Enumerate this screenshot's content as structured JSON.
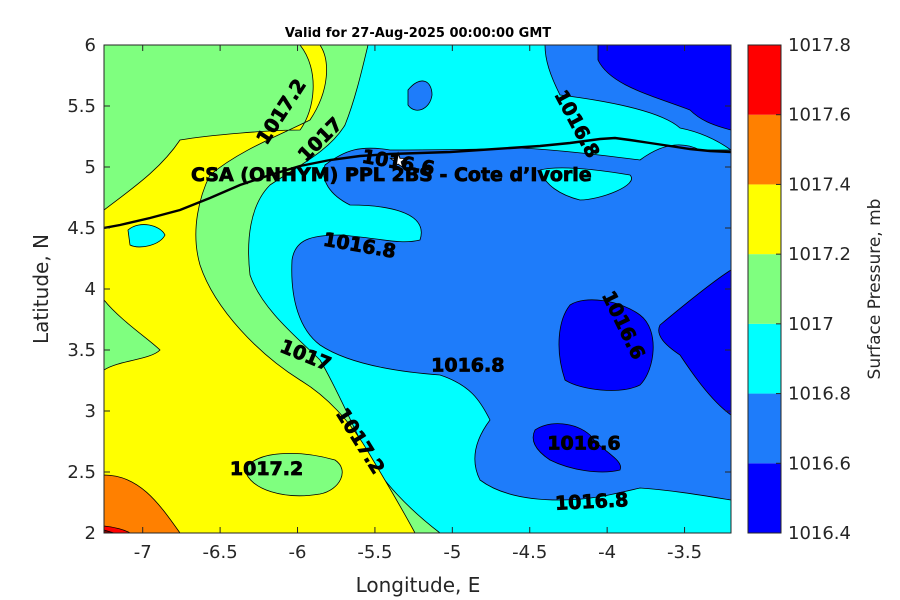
{
  "chart_data": {
    "type": "heatmap",
    "title": "Valid for 27-Aug-2025 00:00:00 GMT",
    "xlabel": "Longitude, E",
    "ylabel": "Latitude, N",
    "xlim": [
      -7.25,
      -3.2
    ],
    "ylim": [
      2,
      6
    ],
    "x_ticks": [
      -7,
      -6.5,
      -6,
      -5.5,
      -5,
      -4.5,
      -4,
      -3.5
    ],
    "x_tick_labels": [
      "-7",
      "-6.5",
      "-6",
      "-5.5",
      "-5",
      "-4.5",
      "-4",
      "-3.5"
    ],
    "y_ticks": [
      2,
      2.5,
      3,
      3.5,
      4,
      4.5,
      5,
      5.5,
      6
    ],
    "y_tick_labels": [
      "2",
      "2.5",
      "3",
      "3.5",
      "4",
      "4.5",
      "5",
      "5.5",
      "6"
    ],
    "colorbar": {
      "label": "Surface Pressure, mb",
      "levels": [
        1016.4,
        1016.6,
        1016.8,
        1017,
        1017.2,
        1017.4,
        1017.6,
        1017.8
      ],
      "tick_labels": [
        "1016.4",
        "1016.6",
        "1016.8",
        "1017",
        "1017.2",
        "1017.4",
        "1017.6",
        "1017.8"
      ],
      "colors": [
        "#0000ff",
        "#1e7cfa",
        "#00ffff",
        "#7fff7f",
        "#ffff00",
        "#ff8000",
        "#ff0000",
        "#800000"
      ]
    },
    "contour_labels": [
      {
        "text": "1017.2",
        "lon": -6.1,
        "lat": 5.45,
        "angle": -57
      },
      {
        "text": "1017",
        "lon": -5.85,
        "lat": 5.22,
        "angle": -45
      },
      {
        "text": "1016.8",
        "lon": -4.2,
        "lat": 5.35,
        "angle": 62
      },
      {
        "text": "1016.6",
        "lon": -5.35,
        "lat": 5.03,
        "angle": 10
      },
      {
        "text": "1016.8",
        "lon": -5.6,
        "lat": 4.35,
        "angle": 10
      },
      {
        "text": "1016.6",
        "lon": -3.9,
        "lat": 3.7,
        "angle": 64
      },
      {
        "text": "1017",
        "lon": -5.95,
        "lat": 3.45,
        "angle": 22
      },
      {
        "text": "1016.8",
        "lon": -4.9,
        "lat": 3.37,
        "angle": 0
      },
      {
        "text": "1017.2",
        "lon": -5.6,
        "lat": 2.75,
        "angle": 58
      },
      {
        "text": "1016.6",
        "lon": -4.15,
        "lat": 2.73,
        "angle": 0
      },
      {
        "text": "1017.2",
        "lon": -6.2,
        "lat": 2.52,
        "angle": 0
      },
      {
        "text": "1016.8",
        "lon": -4.1,
        "lat": 2.25,
        "angle": -3
      }
    ],
    "site": {
      "name": "CSA (ONHYM) PPL 2BS  - Cote d’Ivorie",
      "lon": -5.35,
      "lat": 5.05
    }
  }
}
